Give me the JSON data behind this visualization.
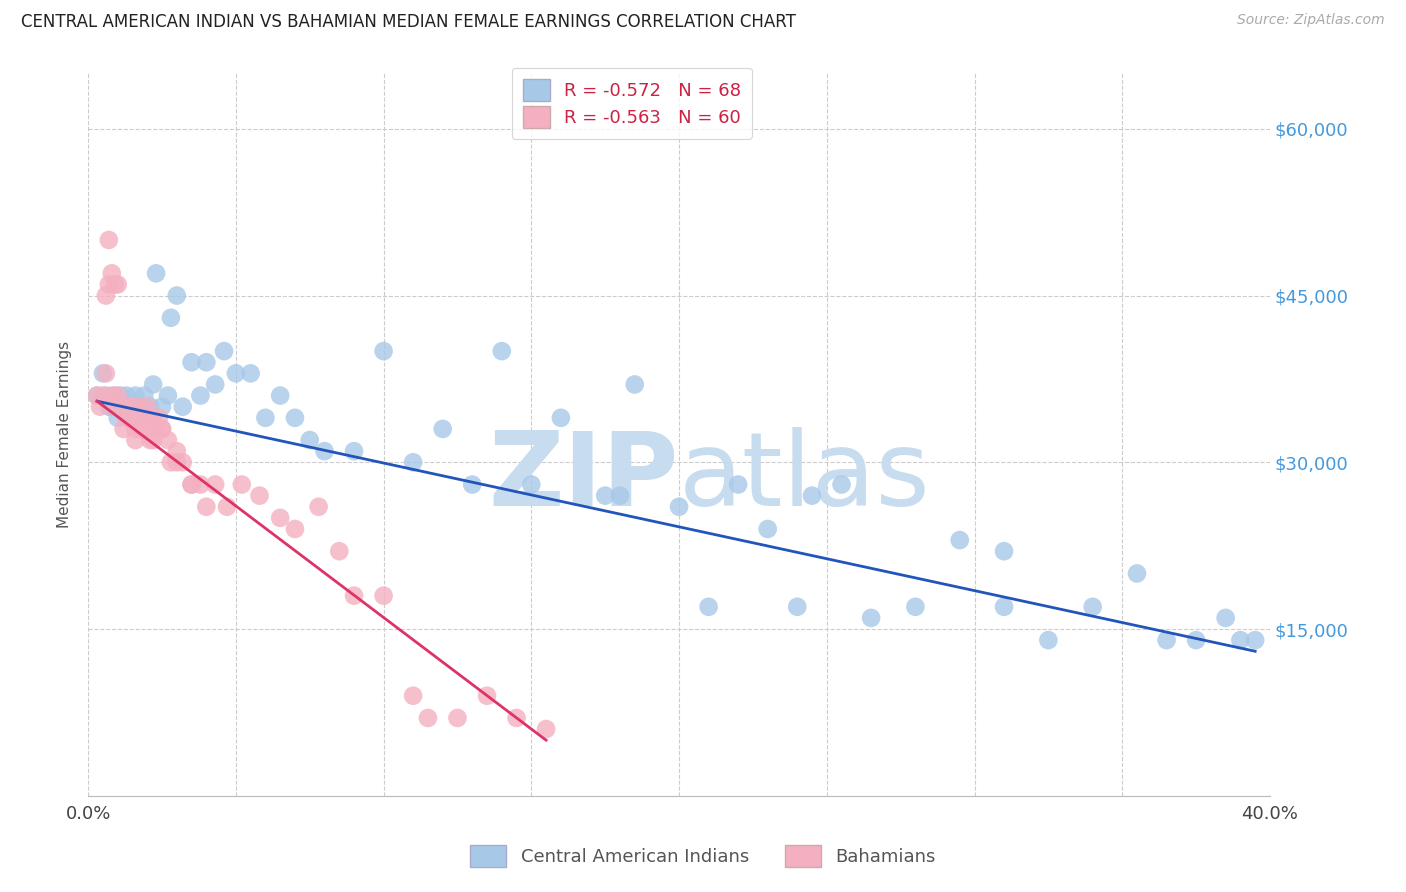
{
  "title": "CENTRAL AMERICAN INDIAN VS BAHAMIAN MEDIAN FEMALE EARNINGS CORRELATION CHART",
  "source": "Source: ZipAtlas.com",
  "ylabel": "Median Female Earnings",
  "xlim": [
    0.0,
    0.4
  ],
  "ylim": [
    0,
    65000
  ],
  "yticks": [
    0,
    15000,
    30000,
    45000,
    60000
  ],
  "xticks": [
    0.0,
    0.05,
    0.1,
    0.15,
    0.2,
    0.25,
    0.3,
    0.35,
    0.4
  ],
  "blue_r": "-0.572",
  "blue_n": "68",
  "pink_r": "-0.563",
  "pink_n": "60",
  "blue_fill": "#A8C8E8",
  "pink_fill": "#F4B0C0",
  "line_blue": "#2255BB",
  "line_pink": "#DD3366",
  "legend_r_color": "#CC2244",
  "legend_n_color": "#2244CC",
  "ytick_color": "#4499DD",
  "watermark_zip": "ZIP",
  "watermark_atlas": "atlas",
  "watermark_color": "#C8DCF0",
  "blue_scatter_x": [
    0.003,
    0.005,
    0.006,
    0.007,
    0.008,
    0.009,
    0.01,
    0.011,
    0.012,
    0.013,
    0.014,
    0.015,
    0.016,
    0.017,
    0.018,
    0.019,
    0.02,
    0.021,
    0.022,
    0.023,
    0.025,
    0.027,
    0.028,
    0.03,
    0.032,
    0.035,
    0.038,
    0.04,
    0.043,
    0.046,
    0.05,
    0.055,
    0.06,
    0.065,
    0.07,
    0.075,
    0.08,
    0.09,
    0.1,
    0.11,
    0.12,
    0.13,
    0.14,
    0.15,
    0.16,
    0.175,
    0.185,
    0.2,
    0.21,
    0.22,
    0.23,
    0.245,
    0.255,
    0.265,
    0.28,
    0.295,
    0.31,
    0.325,
    0.34,
    0.355,
    0.365,
    0.375,
    0.385,
    0.39,
    0.395,
    0.31,
    0.24,
    0.18
  ],
  "blue_scatter_y": [
    36000,
    38000,
    36000,
    35000,
    35000,
    36000,
    34000,
    36000,
    35000,
    36000,
    34000,
    35000,
    36000,
    35000,
    34000,
    36000,
    35000,
    35000,
    37000,
    47000,
    35000,
    36000,
    43000,
    45000,
    35000,
    39000,
    36000,
    39000,
    37000,
    40000,
    38000,
    38000,
    34000,
    36000,
    34000,
    32000,
    31000,
    31000,
    40000,
    30000,
    33000,
    28000,
    40000,
    28000,
    34000,
    27000,
    37000,
    26000,
    17000,
    28000,
    24000,
    27000,
    28000,
    16000,
    17000,
    23000,
    22000,
    14000,
    17000,
    20000,
    14000,
    14000,
    16000,
    14000,
    14000,
    17000,
    17000,
    27000
  ],
  "pink_scatter_x": [
    0.003,
    0.004,
    0.005,
    0.006,
    0.007,
    0.008,
    0.009,
    0.01,
    0.011,
    0.012,
    0.013,
    0.014,
    0.015,
    0.016,
    0.017,
    0.018,
    0.019,
    0.02,
    0.021,
    0.022,
    0.023,
    0.024,
    0.025,
    0.027,
    0.028,
    0.03,
    0.032,
    0.035,
    0.038,
    0.04,
    0.043,
    0.047,
    0.052,
    0.058,
    0.065,
    0.07,
    0.078,
    0.085,
    0.09,
    0.1,
    0.11,
    0.115,
    0.125,
    0.135,
    0.145,
    0.155,
    0.01,
    0.008,
    0.006,
    0.015,
    0.02,
    0.025,
    0.018,
    0.022,
    0.012,
    0.016,
    0.007,
    0.009,
    0.03,
    0.035
  ],
  "pink_scatter_y": [
    36000,
    35000,
    36000,
    38000,
    50000,
    36000,
    35000,
    36000,
    35000,
    35000,
    34000,
    35000,
    34000,
    33000,
    35000,
    34000,
    33000,
    35000,
    32000,
    34000,
    33000,
    34000,
    33000,
    32000,
    30000,
    31000,
    30000,
    28000,
    28000,
    26000,
    28000,
    26000,
    28000,
    27000,
    25000,
    24000,
    26000,
    22000,
    18000,
    18000,
    9000,
    7000,
    7000,
    9000,
    7000,
    6000,
    46000,
    47000,
    45000,
    35000,
    34000,
    33000,
    33000,
    32000,
    33000,
    32000,
    46000,
    46000,
    30000,
    28000
  ],
  "blue_line_x": [
    0.003,
    0.395
  ],
  "blue_line_y": [
    35500,
    13000
  ],
  "pink_line_x": [
    0.003,
    0.155
  ],
  "pink_line_y": [
    35500,
    5000
  ]
}
